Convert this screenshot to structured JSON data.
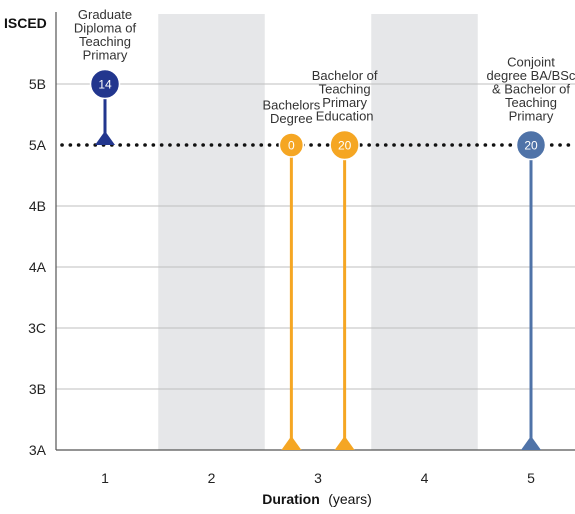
{
  "chart_data": {
    "type": "scatter",
    "y_axis_label": "ISCED",
    "x_axis_label_bold": "Duration",
    "x_axis_label_rest": "(years)",
    "x_ticks": [
      "1",
      "2",
      "3",
      "4",
      "5"
    ],
    "y_levels": [
      "3A",
      "3B",
      "3C",
      "4A",
      "4B",
      "5A",
      "5B"
    ],
    "reference_level": "5A",
    "shaded_columns": [
      "2",
      "4"
    ],
    "colors": {
      "navy": "#22368e",
      "orange": "#f5a623",
      "steel_blue": "#4f73a8",
      "shade": "#e6e7e9",
      "grid": "#bfbfbf"
    },
    "series": [
      {
        "label_lines": [
          "Graduate",
          "Diploma of",
          "Teaching",
          "Primary"
        ],
        "value": "14",
        "duration": 1,
        "from_level": "5A",
        "to_level": "5B",
        "color_key": "navy"
      },
      {
        "label_lines": [
          "Bachelors",
          "Degree"
        ],
        "value": "0",
        "duration": 2.75,
        "from_level": "3A",
        "to_level": "5A",
        "color_key": "orange"
      },
      {
        "label_lines": [
          "Bachelor of",
          "Teaching",
          "Primary",
          "Education"
        ],
        "value": "20",
        "duration": 3.25,
        "from_level": "3A",
        "to_level": "5A",
        "color_key": "orange"
      },
      {
        "label_lines": [
          "Conjoint",
          "degree BA/BSc",
          "& Bachelor of",
          "Teaching",
          "Primary"
        ],
        "value": "20",
        "duration": 5,
        "from_level": "3A",
        "to_level": "5A",
        "color_key": "steel_blue"
      }
    ]
  }
}
